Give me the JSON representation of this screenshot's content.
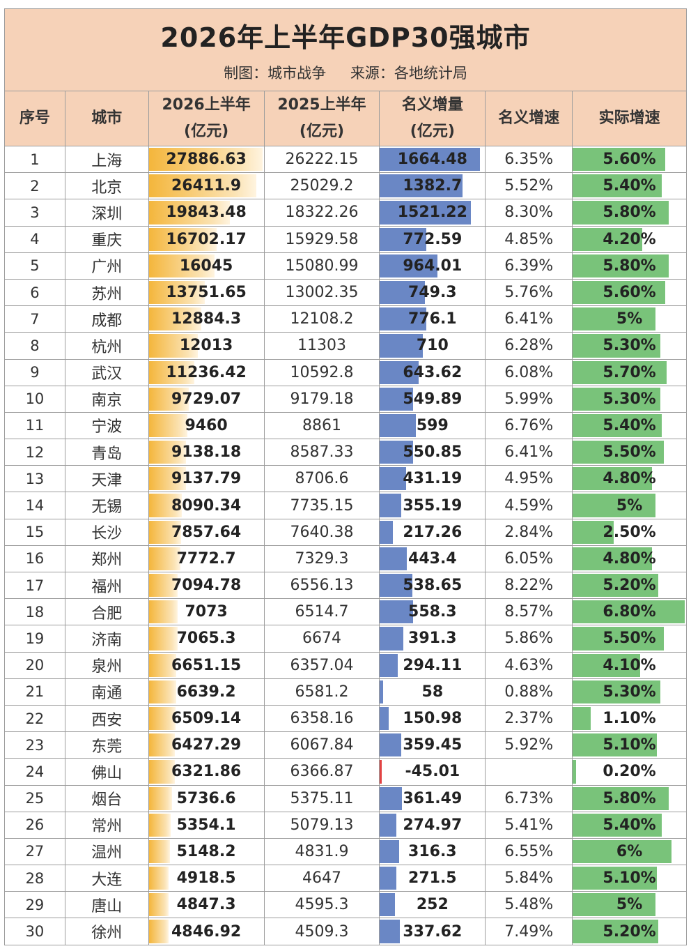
{
  "title": "2026年上半年GDP30强城市",
  "subtitle": {
    "maker": "制图：城市战争",
    "source": "来源：各地统计局"
  },
  "headers": {
    "seq": "序号",
    "city": "城市",
    "gdp2026_l1": "2026上半年",
    "gdp2026_l2": "(亿元)",
    "gdp2025_l1": "2025上半年",
    "gdp2025_l2": "(亿元)",
    "inc_l1": "名义增量",
    "inc_l2": "(亿元)",
    "nominal_rate": "名义增速",
    "real_rate": "实际增速"
  },
  "colors": {
    "header_bg": "#f6d2b8",
    "gdp_bar": "#f4b63c",
    "increment_bar": "#6a87c5",
    "negative_bar": "#e24343",
    "real_growth_bar": "#79c37a"
  },
  "rows": [
    {
      "seq": "1",
      "city": "上海",
      "gdp2026": "27886.63",
      "gdp2025": "26222.15",
      "inc": "1664.48",
      "nominal": "6.35%",
      "real": "5.60%"
    },
    {
      "seq": "2",
      "city": "北京",
      "gdp2026": "26411.9",
      "gdp2025": "25029.2",
      "inc": "1382.7",
      "nominal": "5.52%",
      "real": "5.40%"
    },
    {
      "seq": "3",
      "city": "深圳",
      "gdp2026": "19843.48",
      "gdp2025": "18322.26",
      "inc": "1521.22",
      "nominal": "8.30%",
      "real": "5.80%"
    },
    {
      "seq": "4",
      "city": "重庆",
      "gdp2026": "16702.17",
      "gdp2025": "15929.58",
      "inc": "772.59",
      "nominal": "4.85%",
      "real": "4.20%"
    },
    {
      "seq": "5",
      "city": "广州",
      "gdp2026": "16045",
      "gdp2025": "15080.99",
      "inc": "964.01",
      "nominal": "6.39%",
      "real": "5.80%"
    },
    {
      "seq": "6",
      "city": "苏州",
      "gdp2026": "13751.65",
      "gdp2025": "13002.35",
      "inc": "749.3",
      "nominal": "5.76%",
      "real": "5.60%"
    },
    {
      "seq": "7",
      "city": "成都",
      "gdp2026": "12884.3",
      "gdp2025": "12108.2",
      "inc": "776.1",
      "nominal": "6.41%",
      "real": "5%"
    },
    {
      "seq": "8",
      "city": "杭州",
      "gdp2026": "12013",
      "gdp2025": "11303",
      "inc": "710",
      "nominal": "6.28%",
      "real": "5.30%"
    },
    {
      "seq": "9",
      "city": "武汉",
      "gdp2026": "11236.42",
      "gdp2025": "10592.8",
      "inc": "643.62",
      "nominal": "6.08%",
      "real": "5.70%"
    },
    {
      "seq": "10",
      "city": "南京",
      "gdp2026": "9729.07",
      "gdp2025": "9179.18",
      "inc": "549.89",
      "nominal": "5.99%",
      "real": "5.30%"
    },
    {
      "seq": "11",
      "city": "宁波",
      "gdp2026": "9460",
      "gdp2025": "8861",
      "inc": "599",
      "nominal": "6.76%",
      "real": "5.40%"
    },
    {
      "seq": "12",
      "city": "青岛",
      "gdp2026": "9138.18",
      "gdp2025": "8587.33",
      "inc": "550.85",
      "nominal": "6.41%",
      "real": "5.50%"
    },
    {
      "seq": "13",
      "city": "天津",
      "gdp2026": "9137.79",
      "gdp2025": "8706.6",
      "inc": "431.19",
      "nominal": "4.95%",
      "real": "4.80%"
    },
    {
      "seq": "14",
      "city": "无锡",
      "gdp2026": "8090.34",
      "gdp2025": "7735.15",
      "inc": "355.19",
      "nominal": "4.59%",
      "real": "5%"
    },
    {
      "seq": "15",
      "city": "长沙",
      "gdp2026": "7857.64",
      "gdp2025": "7640.38",
      "inc": "217.26",
      "nominal": "2.84%",
      "real": "2.50%"
    },
    {
      "seq": "16",
      "city": "郑州",
      "gdp2026": "7772.7",
      "gdp2025": "7329.3",
      "inc": "443.4",
      "nominal": "6.05%",
      "real": "4.80%"
    },
    {
      "seq": "17",
      "city": "福州",
      "gdp2026": "7094.78",
      "gdp2025": "6556.13",
      "inc": "538.65",
      "nominal": "8.22%",
      "real": "5.20%"
    },
    {
      "seq": "18",
      "city": "合肥",
      "gdp2026": "7073",
      "gdp2025": "6514.7",
      "inc": "558.3",
      "nominal": "8.57%",
      "real": "6.80%"
    },
    {
      "seq": "19",
      "city": "济南",
      "gdp2026": "7065.3",
      "gdp2025": "6674",
      "inc": "391.3",
      "nominal": "5.86%",
      "real": "5.50%"
    },
    {
      "seq": "20",
      "city": "泉州",
      "gdp2026": "6651.15",
      "gdp2025": "6357.04",
      "inc": "294.11",
      "nominal": "4.63%",
      "real": "4.10%"
    },
    {
      "seq": "21",
      "city": "南通",
      "gdp2026": "6639.2",
      "gdp2025": "6581.2",
      "inc": "58",
      "nominal": "0.88%",
      "real": "5.30%"
    },
    {
      "seq": "22",
      "city": "西安",
      "gdp2026": "6509.14",
      "gdp2025": "6358.16",
      "inc": "150.98",
      "nominal": "2.37%",
      "real": "1.10%"
    },
    {
      "seq": "23",
      "city": "东莞",
      "gdp2026": "6427.29",
      "gdp2025": "6067.84",
      "inc": "359.45",
      "nominal": "5.92%",
      "real": "5.10%"
    },
    {
      "seq": "24",
      "city": "佛山",
      "gdp2026": "6321.86",
      "gdp2025": "6366.87",
      "inc": "-45.01",
      "nominal": "",
      "real": "0.20%"
    },
    {
      "seq": "25",
      "city": "烟台",
      "gdp2026": "5736.6",
      "gdp2025": "5375.11",
      "inc": "361.49",
      "nominal": "6.73%",
      "real": "5.80%"
    },
    {
      "seq": "26",
      "city": "常州",
      "gdp2026": "5354.1",
      "gdp2025": "5079.13",
      "inc": "274.97",
      "nominal": "5.41%",
      "real": "5.40%"
    },
    {
      "seq": "27",
      "city": "温州",
      "gdp2026": "5148.2",
      "gdp2025": "4831.9",
      "inc": "316.3",
      "nominal": "6.55%",
      "real": "6%"
    },
    {
      "seq": "28",
      "city": "大连",
      "gdp2026": "4918.5",
      "gdp2025": "4647",
      "inc": "271.5",
      "nominal": "5.84%",
      "real": "5.10%"
    },
    {
      "seq": "29",
      "city": "唐山",
      "gdp2026": "4847.3",
      "gdp2025": "4595.3",
      "inc": "252",
      "nominal": "5.48%",
      "real": "5%"
    },
    {
      "seq": "30",
      "city": "徐州",
      "gdp2026": "4846.92",
      "gdp2025": "4509.3",
      "inc": "337.62",
      "nominal": "7.49%",
      "real": "5.20%"
    }
  ]
}
